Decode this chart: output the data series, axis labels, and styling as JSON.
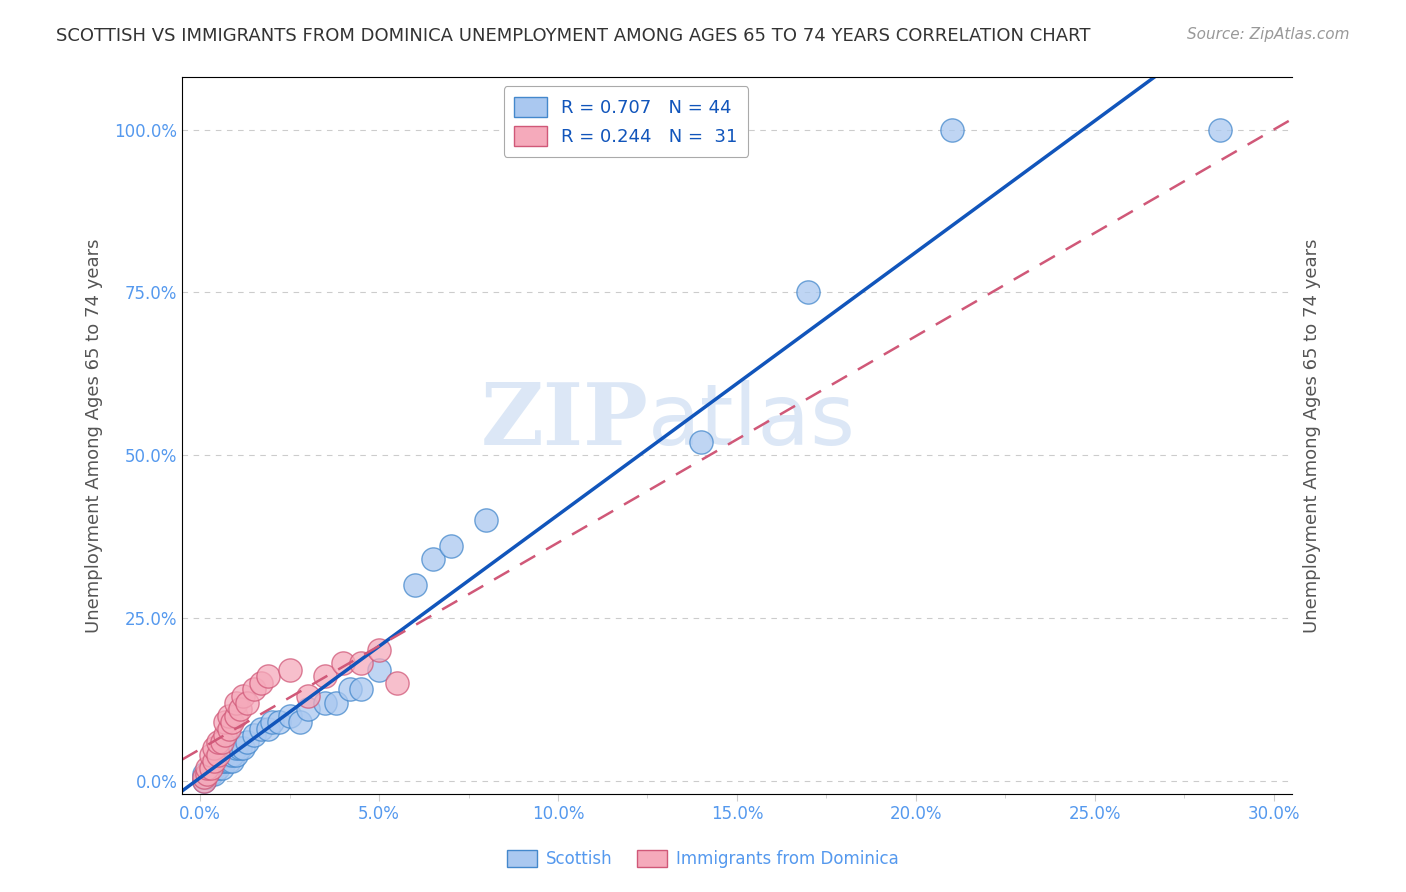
{
  "title": "SCOTTISH VS IMMIGRANTS FROM DOMINICA UNEMPLOYMENT AMONG AGES 65 TO 74 YEARS CORRELATION CHART",
  "source": "Source: ZipAtlas.com",
  "xlabel_ticks": [
    "0.0%",
    "",
    "5.0%",
    "",
    "10.0%",
    "",
    "15.0%",
    "",
    "20.0%",
    "",
    "25.0%",
    "",
    "30.0%"
  ],
  "xlabel_vals": [
    0.0,
    0.025,
    0.05,
    0.075,
    0.1,
    0.125,
    0.15,
    0.175,
    0.2,
    0.225,
    0.25,
    0.275,
    0.3
  ],
  "xlabel_show": [
    "0.0%",
    "5.0%",
    "10.0%",
    "15.0%",
    "20.0%",
    "25.0%",
    "30.0%"
  ],
  "xlabel_show_vals": [
    0.0,
    0.05,
    0.1,
    0.15,
    0.2,
    0.25,
    0.3
  ],
  "ylabel_ticks": [
    "100.0%",
    "75.0%",
    "50.0%",
    "25.0%",
    "0.0%"
  ],
  "ylabel_vals": [
    1.0,
    0.75,
    0.5,
    0.25,
    0.0
  ],
  "ylabel_label": "Unemployment Among Ages 65 to 74 years",
  "legend_blue_r": "R = 0.707",
  "legend_blue_n": "N = 44",
  "legend_pink_r": "R = 0.244",
  "legend_pink_n": "N =  31",
  "watermark_zip": "ZIP",
  "watermark_atlas": "atlas",
  "blue_scatter_x": [
    0.001,
    0.001,
    0.001,
    0.002,
    0.002,
    0.003,
    0.003,
    0.004,
    0.004,
    0.005,
    0.005,
    0.006,
    0.006,
    0.007,
    0.008,
    0.008,
    0.009,
    0.009,
    0.01,
    0.01,
    0.011,
    0.012,
    0.013,
    0.015,
    0.017,
    0.019,
    0.02,
    0.022,
    0.025,
    0.028,
    0.03,
    0.035,
    0.038,
    0.042,
    0.045,
    0.05,
    0.06,
    0.065,
    0.07,
    0.08,
    0.14,
    0.17,
    0.21,
    0.285
  ],
  "blue_scatter_y": [
    0.0,
    0.005,
    0.01,
    0.005,
    0.01,
    0.01,
    0.02,
    0.01,
    0.02,
    0.02,
    0.03,
    0.02,
    0.03,
    0.03,
    0.03,
    0.04,
    0.03,
    0.04,
    0.04,
    0.05,
    0.05,
    0.05,
    0.06,
    0.07,
    0.08,
    0.08,
    0.09,
    0.09,
    0.1,
    0.09,
    0.11,
    0.12,
    0.12,
    0.14,
    0.14,
    0.17,
    0.3,
    0.34,
    0.36,
    0.4,
    0.52,
    0.75,
    1.0,
    1.0
  ],
  "pink_scatter_x": [
    0.001,
    0.001,
    0.002,
    0.002,
    0.003,
    0.003,
    0.004,
    0.004,
    0.005,
    0.005,
    0.006,
    0.007,
    0.007,
    0.008,
    0.008,
    0.009,
    0.01,
    0.01,
    0.011,
    0.012,
    0.013,
    0.015,
    0.017,
    0.019,
    0.025,
    0.03,
    0.035,
    0.04,
    0.045,
    0.05,
    0.055
  ],
  "pink_scatter_y": [
    0.0,
    0.005,
    0.01,
    0.02,
    0.02,
    0.04,
    0.03,
    0.05,
    0.04,
    0.06,
    0.06,
    0.07,
    0.09,
    0.08,
    0.1,
    0.09,
    0.1,
    0.12,
    0.11,
    0.13,
    0.12,
    0.14,
    0.15,
    0.16,
    0.17,
    0.13,
    0.16,
    0.18,
    0.18,
    0.2,
    0.15
  ],
  "blue_color": "#aac8f0",
  "blue_edge_color": "#4488cc",
  "pink_color": "#f5aabb",
  "pink_edge_color": "#d05878",
  "grid_color": "#cccccc",
  "axis_label_color": "#5599ee",
  "title_color": "#333333",
  "ylabel_right_color": "#5599ee",
  "blue_line_color": "#1155bb",
  "pink_line_color": "#cc4466",
  "xlim": [
    -0.005,
    0.305
  ],
  "ylim": [
    -0.02,
    1.08
  ]
}
